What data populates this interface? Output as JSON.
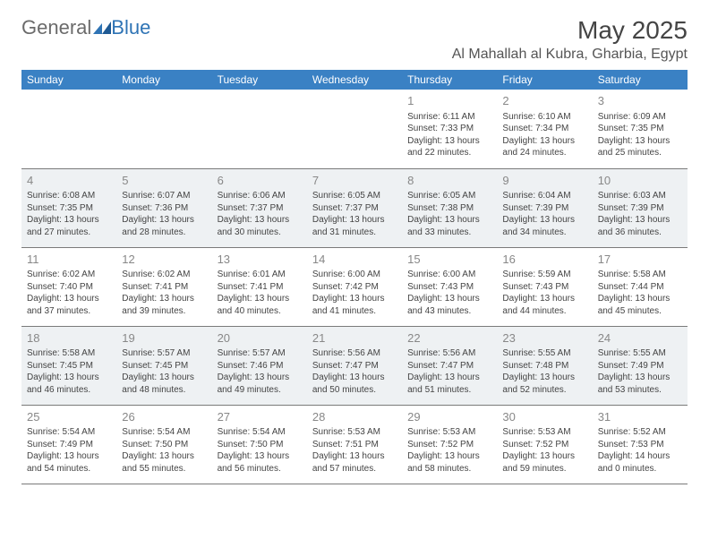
{
  "logo": {
    "text_general": "General",
    "text_blue": "Blue"
  },
  "header": {
    "month_title": "May 2025",
    "location": "Al Mahallah al Kubra, Gharbia, Egypt"
  },
  "colors": {
    "header_bg": "#3a81c4",
    "header_text": "#ffffff",
    "alt_row_bg": "#eef1f3",
    "border": "#7a7a7a",
    "daynum": "#888888",
    "body_text": "#444444",
    "logo_general": "#6b6b6b",
    "logo_blue": "#2f74b5"
  },
  "daysOfWeek": [
    "Sunday",
    "Monday",
    "Tuesday",
    "Wednesday",
    "Thursday",
    "Friday",
    "Saturday"
  ],
  "weeks": [
    {
      "alt": false,
      "cells": [
        {
          "empty": true
        },
        {
          "empty": true
        },
        {
          "empty": true
        },
        {
          "empty": true
        },
        {
          "day": "1",
          "sunrise": "Sunrise: 6:11 AM",
          "sunset": "Sunset: 7:33 PM",
          "daylight": "Daylight: 13 hours and 22 minutes."
        },
        {
          "day": "2",
          "sunrise": "Sunrise: 6:10 AM",
          "sunset": "Sunset: 7:34 PM",
          "daylight": "Daylight: 13 hours and 24 minutes."
        },
        {
          "day": "3",
          "sunrise": "Sunrise: 6:09 AM",
          "sunset": "Sunset: 7:35 PM",
          "daylight": "Daylight: 13 hours and 25 minutes."
        }
      ]
    },
    {
      "alt": true,
      "cells": [
        {
          "day": "4",
          "sunrise": "Sunrise: 6:08 AM",
          "sunset": "Sunset: 7:35 PM",
          "daylight": "Daylight: 13 hours and 27 minutes."
        },
        {
          "day": "5",
          "sunrise": "Sunrise: 6:07 AM",
          "sunset": "Sunset: 7:36 PM",
          "daylight": "Daylight: 13 hours and 28 minutes."
        },
        {
          "day": "6",
          "sunrise": "Sunrise: 6:06 AM",
          "sunset": "Sunset: 7:37 PM",
          "daylight": "Daylight: 13 hours and 30 minutes."
        },
        {
          "day": "7",
          "sunrise": "Sunrise: 6:05 AM",
          "sunset": "Sunset: 7:37 PM",
          "daylight": "Daylight: 13 hours and 31 minutes."
        },
        {
          "day": "8",
          "sunrise": "Sunrise: 6:05 AM",
          "sunset": "Sunset: 7:38 PM",
          "daylight": "Daylight: 13 hours and 33 minutes."
        },
        {
          "day": "9",
          "sunrise": "Sunrise: 6:04 AM",
          "sunset": "Sunset: 7:39 PM",
          "daylight": "Daylight: 13 hours and 34 minutes."
        },
        {
          "day": "10",
          "sunrise": "Sunrise: 6:03 AM",
          "sunset": "Sunset: 7:39 PM",
          "daylight": "Daylight: 13 hours and 36 minutes."
        }
      ]
    },
    {
      "alt": false,
      "cells": [
        {
          "day": "11",
          "sunrise": "Sunrise: 6:02 AM",
          "sunset": "Sunset: 7:40 PM",
          "daylight": "Daylight: 13 hours and 37 minutes."
        },
        {
          "day": "12",
          "sunrise": "Sunrise: 6:02 AM",
          "sunset": "Sunset: 7:41 PM",
          "daylight": "Daylight: 13 hours and 39 minutes."
        },
        {
          "day": "13",
          "sunrise": "Sunrise: 6:01 AM",
          "sunset": "Sunset: 7:41 PM",
          "daylight": "Daylight: 13 hours and 40 minutes."
        },
        {
          "day": "14",
          "sunrise": "Sunrise: 6:00 AM",
          "sunset": "Sunset: 7:42 PM",
          "daylight": "Daylight: 13 hours and 41 minutes."
        },
        {
          "day": "15",
          "sunrise": "Sunrise: 6:00 AM",
          "sunset": "Sunset: 7:43 PM",
          "daylight": "Daylight: 13 hours and 43 minutes."
        },
        {
          "day": "16",
          "sunrise": "Sunrise: 5:59 AM",
          "sunset": "Sunset: 7:43 PM",
          "daylight": "Daylight: 13 hours and 44 minutes."
        },
        {
          "day": "17",
          "sunrise": "Sunrise: 5:58 AM",
          "sunset": "Sunset: 7:44 PM",
          "daylight": "Daylight: 13 hours and 45 minutes."
        }
      ]
    },
    {
      "alt": true,
      "cells": [
        {
          "day": "18",
          "sunrise": "Sunrise: 5:58 AM",
          "sunset": "Sunset: 7:45 PM",
          "daylight": "Daylight: 13 hours and 46 minutes."
        },
        {
          "day": "19",
          "sunrise": "Sunrise: 5:57 AM",
          "sunset": "Sunset: 7:45 PM",
          "daylight": "Daylight: 13 hours and 48 minutes."
        },
        {
          "day": "20",
          "sunrise": "Sunrise: 5:57 AM",
          "sunset": "Sunset: 7:46 PM",
          "daylight": "Daylight: 13 hours and 49 minutes."
        },
        {
          "day": "21",
          "sunrise": "Sunrise: 5:56 AM",
          "sunset": "Sunset: 7:47 PM",
          "daylight": "Daylight: 13 hours and 50 minutes."
        },
        {
          "day": "22",
          "sunrise": "Sunrise: 5:56 AM",
          "sunset": "Sunset: 7:47 PM",
          "daylight": "Daylight: 13 hours and 51 minutes."
        },
        {
          "day": "23",
          "sunrise": "Sunrise: 5:55 AM",
          "sunset": "Sunset: 7:48 PM",
          "daylight": "Daylight: 13 hours and 52 minutes."
        },
        {
          "day": "24",
          "sunrise": "Sunrise: 5:55 AM",
          "sunset": "Sunset: 7:49 PM",
          "daylight": "Daylight: 13 hours and 53 minutes."
        }
      ]
    },
    {
      "alt": false,
      "cells": [
        {
          "day": "25",
          "sunrise": "Sunrise: 5:54 AM",
          "sunset": "Sunset: 7:49 PM",
          "daylight": "Daylight: 13 hours and 54 minutes."
        },
        {
          "day": "26",
          "sunrise": "Sunrise: 5:54 AM",
          "sunset": "Sunset: 7:50 PM",
          "daylight": "Daylight: 13 hours and 55 minutes."
        },
        {
          "day": "27",
          "sunrise": "Sunrise: 5:54 AM",
          "sunset": "Sunset: 7:50 PM",
          "daylight": "Daylight: 13 hours and 56 minutes."
        },
        {
          "day": "28",
          "sunrise": "Sunrise: 5:53 AM",
          "sunset": "Sunset: 7:51 PM",
          "daylight": "Daylight: 13 hours and 57 minutes."
        },
        {
          "day": "29",
          "sunrise": "Sunrise: 5:53 AM",
          "sunset": "Sunset: 7:52 PM",
          "daylight": "Daylight: 13 hours and 58 minutes."
        },
        {
          "day": "30",
          "sunrise": "Sunrise: 5:53 AM",
          "sunset": "Sunset: 7:52 PM",
          "daylight": "Daylight: 13 hours and 59 minutes."
        },
        {
          "day": "31",
          "sunrise": "Sunrise: 5:52 AM",
          "sunset": "Sunset: 7:53 PM",
          "daylight": "Daylight: 14 hours and 0 minutes."
        }
      ]
    }
  ]
}
